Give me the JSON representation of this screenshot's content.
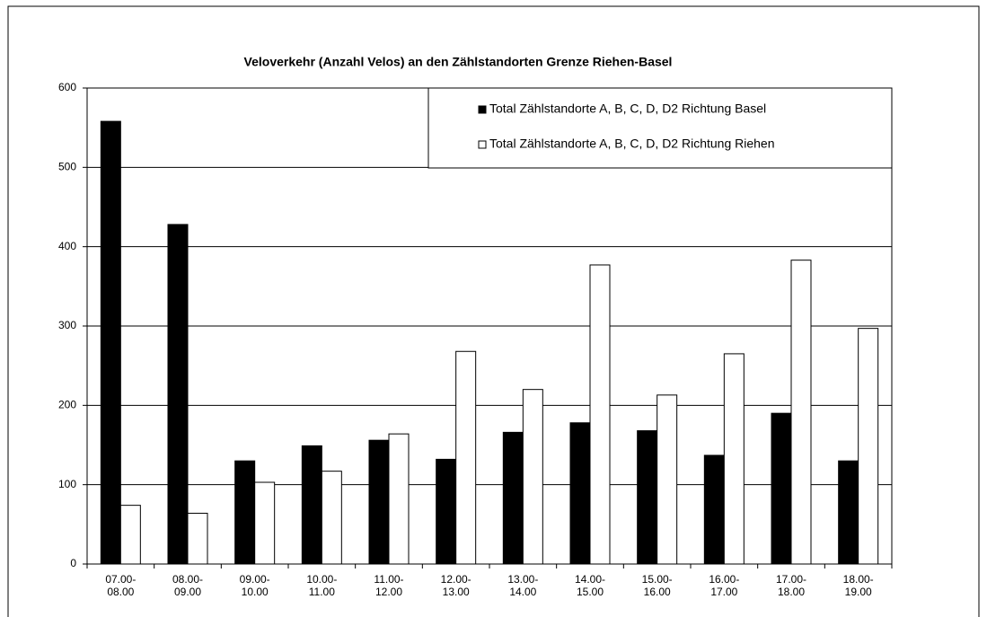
{
  "chart_data": {
    "type": "bar",
    "title": "Veloverkehr (Anzahl Velos) an den Zählstandorten Grenze Riehen-Basel",
    "categories": [
      "07.00-08.00",
      "08.00-09.00",
      "09.00-10.00",
      "10.00-11.00",
      "11.00-12.00",
      "12.00-13.00",
      "13.00-14.00",
      "14.00-15.00",
      "15.00-16.00",
      "16.00-17.00",
      "17.00-18.00",
      "18.00-19.00"
    ],
    "series": [
      {
        "name": "Total Zählstandorte A, B, C, D, D2 Richtung Basel",
        "color": "#000000",
        "values": [
          558,
          428,
          130,
          149,
          156,
          132,
          166,
          178,
          168,
          137,
          190,
          130
        ]
      },
      {
        "name": "Total Zählstandorte A, B, C, D, D2 Richtung Riehen",
        "color": "#ffffff",
        "values": [
          74,
          64,
          103,
          117,
          164,
          268,
          220,
          377,
          213,
          265,
          383,
          297
        ]
      }
    ],
    "ylim": [
      0,
      600
    ],
    "yticks": [
      0,
      100,
      200,
      300,
      400,
      500,
      600
    ],
    "grid": true,
    "legend": "upper right"
  }
}
